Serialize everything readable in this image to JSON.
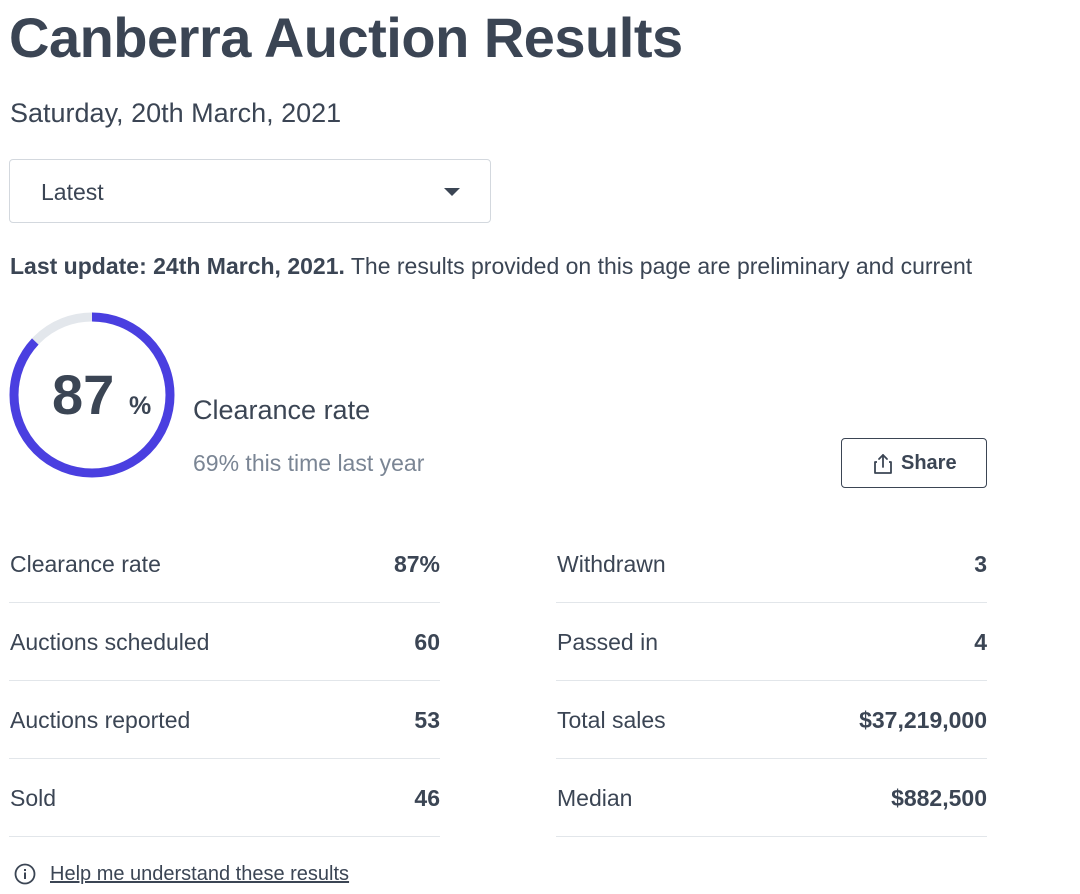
{
  "page": {
    "title": "Canberra Auction Results",
    "date": "Saturday, 20th March, 2021"
  },
  "period_select": {
    "selected": "Latest"
  },
  "update_notice": {
    "label": "Last update: 24th March, 2021.",
    "text": " The results provided on this page are preliminary and current"
  },
  "clearance": {
    "value": 87,
    "value_text": "87",
    "percent_sign": "%",
    "label": "Clearance rate",
    "last_year": "69% this time last year",
    "progress_color": "#4a3fe0",
    "track_color": "#e3e7ec"
  },
  "share_button": {
    "label": "Share",
    "icon": "share-icon"
  },
  "stats_left": [
    {
      "label": "Clearance rate",
      "value": "87%"
    },
    {
      "label": "Auctions scheduled",
      "value": "60"
    },
    {
      "label": "Auctions reported",
      "value": "53"
    },
    {
      "label": "Sold",
      "value": "46"
    }
  ],
  "stats_right": [
    {
      "label": "Withdrawn",
      "value": "3"
    },
    {
      "label": "Passed in",
      "value": "4"
    },
    {
      "label": "Total sales",
      "value": "$37,219,000"
    },
    {
      "label": "Median",
      "value": "$882,500"
    }
  ],
  "help": {
    "icon": "info-icon",
    "link_text": "Help me understand these results"
  },
  "colors": {
    "text": "#3b4554",
    "muted": "#7a8594",
    "border": "#d3d8de",
    "divider": "#e2e6ea"
  }
}
